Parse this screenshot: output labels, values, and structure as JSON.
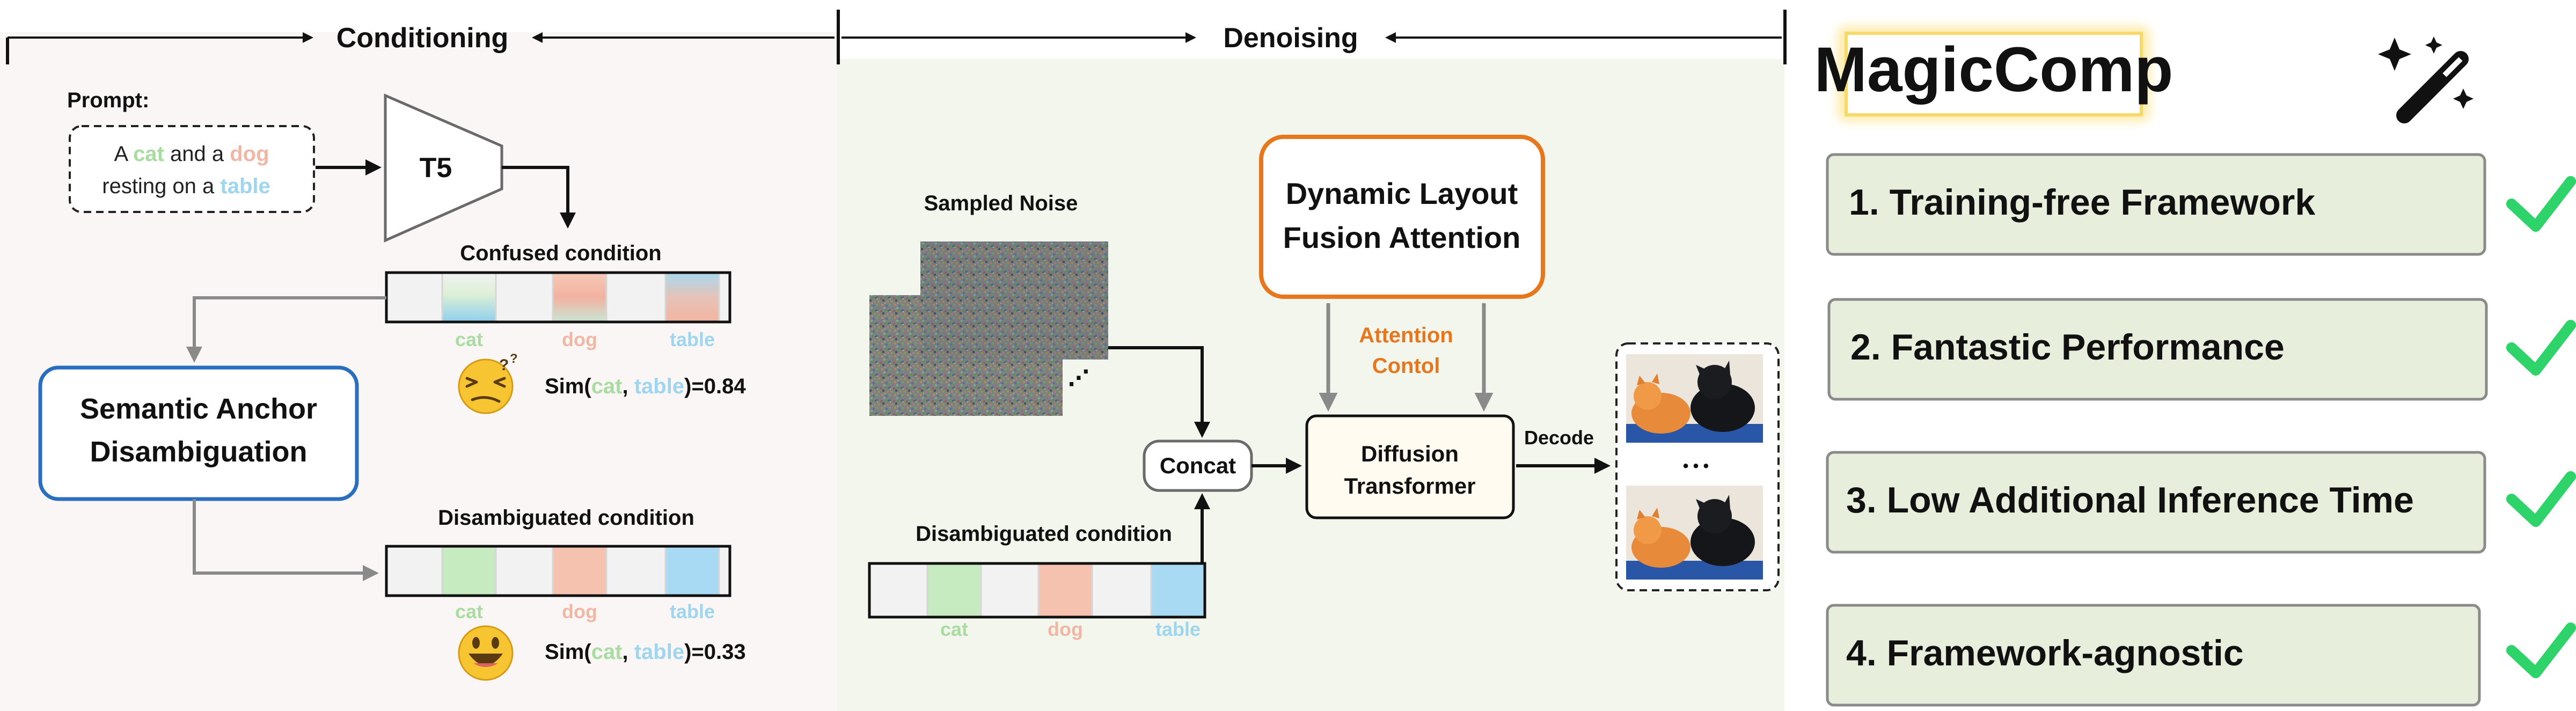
{
  "colors": {
    "cat": "#a8dca0",
    "dog": "#f0b7a4",
    "table": "#9ed5ef",
    "blue_box": "#2a6fbf",
    "orange_box": "#e8761c",
    "orange_text": "#e8761c",
    "check": "#2ed36a",
    "left_panel_bg": "#fbf6f6",
    "mid_panel_bg": "#f2f6ec",
    "feature_box_bg": "#e7efdc"
  },
  "header": {
    "conditioning": "Conditioning",
    "denoising": "Denoising"
  },
  "conditioning": {
    "prompt_label": "Prompt:",
    "prompt": {
      "w1": "A ",
      "cat": "cat",
      "w2": " and a ",
      "dog": "dog",
      "w3": "resting on a ",
      "table": "table"
    },
    "encoder": "T5",
    "confused_label": "Confused condition",
    "disambiguated_label": "Disambiguated condition",
    "token_labels": {
      "cat": "cat",
      "dog": "dog",
      "table": "table"
    },
    "sad_box": {
      "line1": "Semantic Anchor",
      "line2": "Disambiguation"
    },
    "sim_confused": {
      "prefix": "Sim(",
      "a": "cat",
      "sep": ", ",
      "b": "table",
      "suffix": ")=0.84"
    },
    "sim_disamb": {
      "prefix": "Sim(",
      "a": "cat",
      "sep": ", ",
      "b": "table",
      "suffix": ")=0.33"
    },
    "emoji_confused": "confused-face-icon",
    "emoji_happy": "smiling-face-icon"
  },
  "denoising": {
    "noise_label": "Sampled Noise",
    "noise_dots": "⋰",
    "dlfa_box": {
      "line1": "Dynamic Layout",
      "line2": "Fusion Attention"
    },
    "attention_control": {
      "line1": "Attention",
      "line2": "Contol"
    },
    "concat": "Concat",
    "dit_box": {
      "line1": "Diffusion",
      "line2": "Transformer"
    },
    "decode": "Decode",
    "disambiguated_label": "Disambiguated condition",
    "token_labels": {
      "cat": "cat",
      "dog": "dog",
      "table": "table"
    },
    "output_dots": "• • •"
  },
  "features": {
    "title": "MagicComp",
    "title_icon": "magic-wand-icon",
    "items": [
      {
        "label": "1. Training-free Framework",
        "icon": "checkmark-icon"
      },
      {
        "label": "2. Fantastic Performance",
        "icon": "checkmark-icon"
      },
      {
        "label": "3. Low Additional Inference Time",
        "icon": "checkmark-icon"
      },
      {
        "label": "4. Framework-agnostic",
        "icon": "checkmark-icon"
      }
    ]
  }
}
